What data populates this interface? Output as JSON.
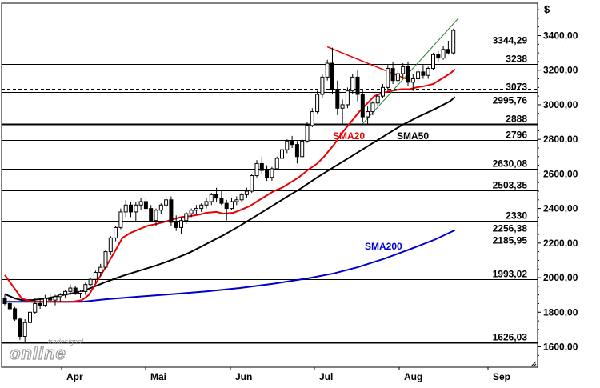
{
  "chart_data": {
    "type": "candlestick",
    "currency_label": "$",
    "y_ticks": [
      "1600,00",
      "1800,00",
      "2000,00",
      "2200,00",
      "2400,00",
      "2600,00",
      "2800,00",
      "3000,00",
      "3200,00",
      "3400,00"
    ],
    "y_tick_values": [
      1600,
      1800,
      2000,
      2200,
      2400,
      2600,
      2800,
      3000,
      3200,
      3400
    ],
    "ylim": [
      1540,
      3560
    ],
    "months": [
      "Apr",
      "Mai",
      "Jun",
      "Jul",
      "Aug",
      "Sep"
    ],
    "levels": [
      {
        "value": 3344.29,
        "label": "3344,29",
        "style": "solid"
      },
      {
        "value": 3238,
        "label": "3238",
        "style": "solid"
      },
      {
        "value": 3093,
        "label": "",
        "style": "dashed"
      },
      {
        "value": 3073,
        "label": "3073",
        "style": "solid"
      },
      {
        "value": 2995.76,
        "label": "2995,76",
        "style": "solid"
      },
      {
        "value": 2888,
        "label": "2888",
        "style": "solid-bold"
      },
      {
        "value": 2796,
        "label": "2796",
        "style": "solid"
      },
      {
        "value": 2630.08,
        "label": "2630,08",
        "style": "solid"
      },
      {
        "value": 2503.35,
        "label": "2503,35",
        "style": "solid"
      },
      {
        "value": 2330,
        "label": "2330",
        "style": "solid"
      },
      {
        "value": 2256.38,
        "label": "2256,38",
        "style": "solid"
      },
      {
        "value": 2185.95,
        "label": "2185,95",
        "style": "solid"
      },
      {
        "value": 1993.02,
        "label": "1993,02",
        "style": "solid"
      },
      {
        "value": 1626.03,
        "label": "1626,03",
        "style": "solid-bold"
      }
    ],
    "series_labels": [
      {
        "name": "SMA20",
        "color": "#e60000"
      },
      {
        "name": "SMA50",
        "color": "#000000"
      },
      {
        "name": "SMA200",
        "color": "#0000cc"
      }
    ],
    "sma20": [
      [
        0,
        2015
      ],
      [
        6,
        1935
      ],
      [
        10,
        1880
      ],
      [
        16,
        1860
      ],
      [
        25,
        1860
      ],
      [
        40,
        1860
      ],
      [
        46,
        1870
      ],
      [
        50,
        1900
      ],
      [
        55,
        1980
      ],
      [
        60,
        2060
      ],
      [
        66,
        2160
      ],
      [
        70,
        2230
      ],
      [
        75,
        2260
      ],
      [
        80,
        2280
      ],
      [
        85,
        2300
      ],
      [
        90,
        2310
      ],
      [
        96,
        2325
      ],
      [
        101,
        2340
      ],
      [
        105,
        2350
      ],
      [
        110,
        2355
      ],
      [
        116,
        2365
      ],
      [
        120,
        2375
      ],
      [
        126,
        2380
      ],
      [
        130,
        2370
      ],
      [
        136,
        2375
      ],
      [
        140,
        2390
      ],
      [
        146,
        2415
      ],
      [
        150,
        2440
      ],
      [
        155,
        2470
      ],
      [
        160,
        2500
      ],
      [
        165,
        2520
      ],
      [
        170,
        2550
      ],
      [
        175,
        2580
      ],
      [
        180,
        2620
      ],
      [
        186,
        2660
      ],
      [
        190,
        2700
      ],
      [
        196,
        2770
      ],
      [
        201,
        2840
      ],
      [
        206,
        2900
      ],
      [
        211,
        2960
      ],
      [
        216,
        3010
      ],
      [
        220,
        3050
      ],
      [
        225,
        3070
      ],
      [
        230,
        3080
      ],
      [
        236,
        3090
      ],
      [
        241,
        3090
      ],
      [
        245,
        3100
      ],
      [
        251,
        3110
      ],
      [
        255,
        3120
      ],
      [
        260,
        3150
      ],
      [
        265,
        3180
      ],
      [
        268,
        3205
      ]
    ],
    "sma50": [
      [
        0,
        1905
      ],
      [
        6,
        1880
      ],
      [
        10,
        1870
      ],
      [
        16,
        1870
      ],
      [
        25,
        1880
      ],
      [
        35,
        1900
      ],
      [
        46,
        1920
      ],
      [
        55,
        1955
      ],
      [
        60,
        1975
      ],
      [
        70,
        2010
      ],
      [
        80,
        2040
      ],
      [
        90,
        2070
      ],
      [
        100,
        2105
      ],
      [
        110,
        2145
      ],
      [
        120,
        2195
      ],
      [
        130,
        2245
      ],
      [
        140,
        2300
      ],
      [
        150,
        2360
      ],
      [
        160,
        2420
      ],
      [
        170,
        2480
      ],
      [
        176,
        2515
      ],
      [
        186,
        2580
      ],
      [
        196,
        2640
      ],
      [
        206,
        2700
      ],
      [
        216,
        2760
      ],
      [
        226,
        2820
      ],
      [
        236,
        2880
      ],
      [
        246,
        2930
      ],
      [
        256,
        2975
      ],
      [
        265,
        3020
      ],
      [
        268,
        3045
      ]
    ],
    "sma200": [
      [
        0,
        1860
      ],
      [
        16,
        1860
      ],
      [
        46,
        1860
      ],
      [
        60,
        1875
      ],
      [
        80,
        1890
      ],
      [
        100,
        1905
      ],
      [
        120,
        1920
      ],
      [
        140,
        1940
      ],
      [
        160,
        1965
      ],
      [
        180,
        1995
      ],
      [
        196,
        2025
      ],
      [
        210,
        2060
      ],
      [
        226,
        2110
      ],
      [
        240,
        2160
      ],
      [
        256,
        2220
      ],
      [
        268,
        2275
      ]
    ],
    "candles": [
      [
        0,
        1880,
        1900,
        1840,
        1850
      ],
      [
        1,
        1850,
        1870,
        1810,
        1820
      ],
      [
        2,
        1820,
        1830,
        1750,
        1760
      ],
      [
        3,
        1760,
        1770,
        1640,
        1660
      ],
      [
        4,
        1660,
        1760,
        1626,
        1740
      ],
      [
        5,
        1740,
        1820,
        1730,
        1800
      ],
      [
        6,
        1800,
        1880,
        1790,
        1850
      ],
      [
        7,
        1850,
        1880,
        1820,
        1840
      ],
      [
        8,
        1840,
        1900,
        1830,
        1880
      ],
      [
        9,
        1880,
        1910,
        1860,
        1870
      ],
      [
        10,
        1870,
        1900,
        1840,
        1890
      ],
      [
        11,
        1890,
        1910,
        1860,
        1900
      ],
      [
        12,
        1900,
        1930,
        1880,
        1920
      ],
      [
        13,
        1920,
        1960,
        1900,
        1940
      ],
      [
        14,
        1940,
        1950,
        1900,
        1910
      ],
      [
        15,
        1910,
        1930,
        1880,
        1920
      ],
      [
        16,
        1920,
        1970,
        1900,
        1960
      ],
      [
        17,
        1960,
        2000,
        1950,
        1990
      ],
      [
        18,
        1990,
        2040,
        1970,
        2030
      ],
      [
        19,
        2030,
        2080,
        2010,
        2060
      ],
      [
        20,
        2060,
        2160,
        2050,
        2150
      ],
      [
        21,
        2150,
        2240,
        2130,
        2230
      ],
      [
        22,
        2230,
        2300,
        2210,
        2290
      ],
      [
        23,
        2290,
        2400,
        2280,
        2380
      ],
      [
        24,
        2380,
        2450,
        2350,
        2420
      ],
      [
        25,
        2420,
        2440,
        2350,
        2380
      ],
      [
        26,
        2380,
        2440,
        2320,
        2420
      ],
      [
        27,
        2420,
        2460,
        2390,
        2440
      ],
      [
        28,
        2440,
        2460,
        2380,
        2400
      ],
      [
        29,
        2400,
        2420,
        2320,
        2330
      ],
      [
        30,
        2330,
        2400,
        2300,
        2390
      ],
      [
        31,
        2390,
        2430,
        2370,
        2420
      ],
      [
        32,
        2420,
        2470,
        2400,
        2450
      ],
      [
        33,
        2450,
        2470,
        2300,
        2320
      ],
      [
        34,
        2320,
        2360,
        2270,
        2290
      ],
      [
        35,
        2290,
        2350,
        2250,
        2330
      ],
      [
        36,
        2330,
        2380,
        2310,
        2370
      ],
      [
        37,
        2370,
        2400,
        2350,
        2390
      ],
      [
        38,
        2390,
        2420,
        2370,
        2400
      ],
      [
        39,
        2400,
        2430,
        2380,
        2420
      ],
      [
        40,
        2420,
        2460,
        2400,
        2440
      ],
      [
        41,
        2440,
        2490,
        2420,
        2480
      ],
      [
        42,
        2480,
        2520,
        2440,
        2460
      ],
      [
        43,
        2460,
        2500,
        2420,
        2430
      ],
      [
        44,
        2430,
        2450,
        2330,
        2400
      ],
      [
        45,
        2400,
        2460,
        2390,
        2440
      ],
      [
        46,
        2440,
        2470,
        2420,
        2450
      ],
      [
        47,
        2450,
        2490,
        2440,
        2480
      ],
      [
        48,
        2480,
        2520,
        2460,
        2500
      ],
      [
        49,
        2500,
        2600,
        2490,
        2590
      ],
      [
        50,
        2590,
        2680,
        2580,
        2660
      ],
      [
        51,
        2660,
        2700,
        2600,
        2620
      ],
      [
        52,
        2620,
        2650,
        2560,
        2580
      ],
      [
        53,
        2580,
        2640,
        2560,
        2630
      ],
      [
        54,
        2630,
        2700,
        2620,
        2690
      ],
      [
        55,
        2690,
        2760,
        2670,
        2740
      ],
      [
        56,
        2740,
        2800,
        2720,
        2790
      ],
      [
        57,
        2790,
        2820,
        2750,
        2770
      ],
      [
        58,
        2770,
        2790,
        2660,
        2700
      ],
      [
        59,
        2700,
        2800,
        2690,
        2790
      ],
      [
        60,
        2790,
        2900,
        2780,
        2880
      ],
      [
        61,
        2880,
        2980,
        2870,
        2960
      ],
      [
        62,
        2960,
        3080,
        2950,
        3060
      ],
      [
        63,
        3060,
        3180,
        3040,
        3160
      ],
      [
        64,
        3160,
        3260,
        3140,
        3240
      ],
      [
        65,
        3240,
        3330,
        3060,
        3090
      ],
      [
        66,
        3090,
        3140,
        2940,
        2980
      ],
      [
        67,
        2980,
        3030,
        2890,
        3000
      ],
      [
        68,
        3000,
        3100,
        2980,
        3080
      ],
      [
        69,
        3080,
        3180,
        3060,
        3160
      ],
      [
        70,
        3160,
        3200,
        3020,
        3060
      ],
      [
        71,
        3060,
        3090,
        2900,
        2930
      ],
      [
        72,
        2930,
        2990,
        2890,
        2960
      ],
      [
        73,
        2960,
        3020,
        2940,
        3010
      ],
      [
        74,
        3010,
        3060,
        2990,
        3050
      ],
      [
        75,
        3050,
        3120,
        3040,
        3100
      ],
      [
        76,
        3100,
        3230,
        3080,
        3210
      ],
      [
        77,
        3210,
        3250,
        3120,
        3140
      ],
      [
        78,
        3140,
        3200,
        3100,
        3180
      ],
      [
        79,
        3180,
        3240,
        3150,
        3220
      ],
      [
        80,
        3220,
        3250,
        3110,
        3130
      ],
      [
        81,
        3130,
        3180,
        3080,
        3150
      ],
      [
        82,
        3150,
        3210,
        3130,
        3190
      ],
      [
        83,
        3190,
        3230,
        3150,
        3170
      ],
      [
        84,
        3170,
        3220,
        3150,
        3210
      ],
      [
        85,
        3210,
        3300,
        3200,
        3290
      ],
      [
        86,
        3290,
        3310,
        3250,
        3270
      ],
      [
        87,
        3270,
        3340,
        3260,
        3320
      ],
      [
        88,
        3320,
        3370,
        3290,
        3300
      ],
      [
        89,
        3300,
        3440,
        3290,
        3430
      ]
    ],
    "red_downtrend": [
      [
        64,
        3335
      ],
      [
        80,
        3145
      ]
    ],
    "green_uptrend": [
      [
        71,
        2890
      ],
      [
        90,
        3500
      ]
    ]
  },
  "branding": {
    "logo_top": "tradesignal",
    "logo_main": "online"
  },
  "colors": {
    "sma20": "#e60000",
    "sma50": "#000000",
    "sma200": "#0000cc",
    "levels": "#000000"
  }
}
